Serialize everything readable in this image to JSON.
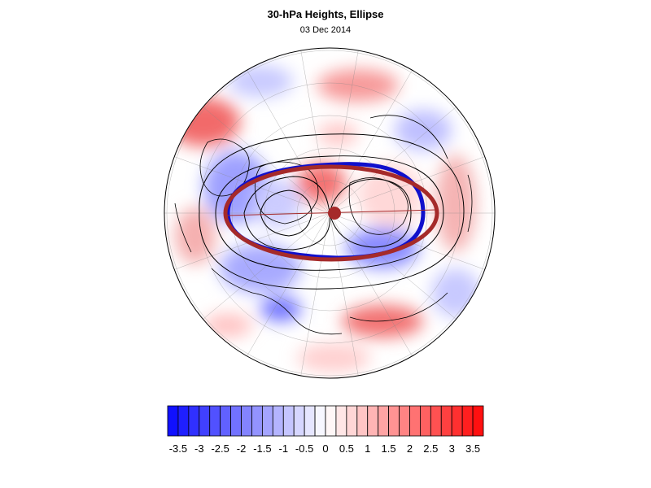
{
  "title": "30-hPa Heights, Ellipse",
  "subtitle": "03 Dec 2014",
  "colorbar": {
    "min": -3.75,
    "max": 3.75,
    "step": 0.25,
    "low_color": "#1010ff",
    "mid_color": "#ffffff",
    "high_color": "#ff1010",
    "labels": [
      "-3.5",
      "-3",
      "-2.5",
      "-2",
      "-1.5",
      "-1",
      "-0.5",
      "0",
      "0.5",
      "1",
      "1.5",
      "2",
      "2.5",
      "3",
      "3.5"
    ]
  },
  "map": {
    "projection": "north-polar-orthographic",
    "ellipse_colors": {
      "observed": "#1010cc",
      "climatology": "#a52a2a"
    },
    "contour_color": "#000000",
    "center_marker_color": "#a52a2a"
  }
}
